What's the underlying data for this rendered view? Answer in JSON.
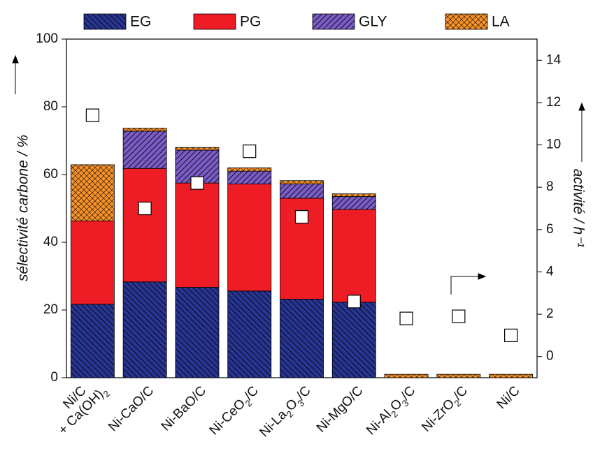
{
  "chart_data": {
    "type": "bar",
    "stacked": true,
    "categories": [
      [
        "Ni/C",
        "+ Ca(OH)2"
      ],
      "Ni-CaO/C",
      "Ni-BaO/C",
      "Ni-CeO2/C",
      "Ni-La2O3/C",
      "Ni-MgO/C",
      "Ni-Al2O3/C",
      "Ni-ZrO2/C",
      "Ni/C"
    ],
    "series": [
      {
        "name": "EG",
        "color": "#283593",
        "hatch": "backslash",
        "values": [
          21.7,
          28.3,
          26.7,
          25.6,
          23.2,
          22.3,
          0,
          0,
          0
        ]
      },
      {
        "name": "PG",
        "color": "#ee1c25",
        "hatch": "none",
        "values": [
          24.6,
          33.5,
          30.8,
          31.6,
          29.8,
          27.4,
          0,
          0,
          0
        ]
      },
      {
        "name": "GLY",
        "color": "#7a5cc7",
        "hatch": "slash",
        "values": [
          0,
          11,
          9.7,
          3.8,
          4.2,
          3.8,
          0,
          0,
          0
        ]
      },
      {
        "name": "LA",
        "color": "#f7922a",
        "hatch": "cross",
        "values": [
          16.6,
          0.9,
          0.8,
          1,
          1,
          0.8,
          1,
          1,
          1
        ]
      }
    ],
    "activity": {
      "axis": "y2",
      "marker": "square",
      "values": [
        11.4,
        7.0,
        8.2,
        9.7,
        6.6,
        2.6,
        1.8,
        1.9,
        1.0
      ]
    },
    "ylabel": "sélectivité carbone / %",
    "y2label": "activité / h⁻¹",
    "ylim": [
      0,
      100
    ],
    "yticks": [
      0,
      20,
      40,
      60,
      80,
      100
    ],
    "y2lim": [
      -1,
      15
    ],
    "y2ticks": [
      0,
      2,
      4,
      6,
      8,
      10,
      12,
      14
    ],
    "legend": "top"
  }
}
